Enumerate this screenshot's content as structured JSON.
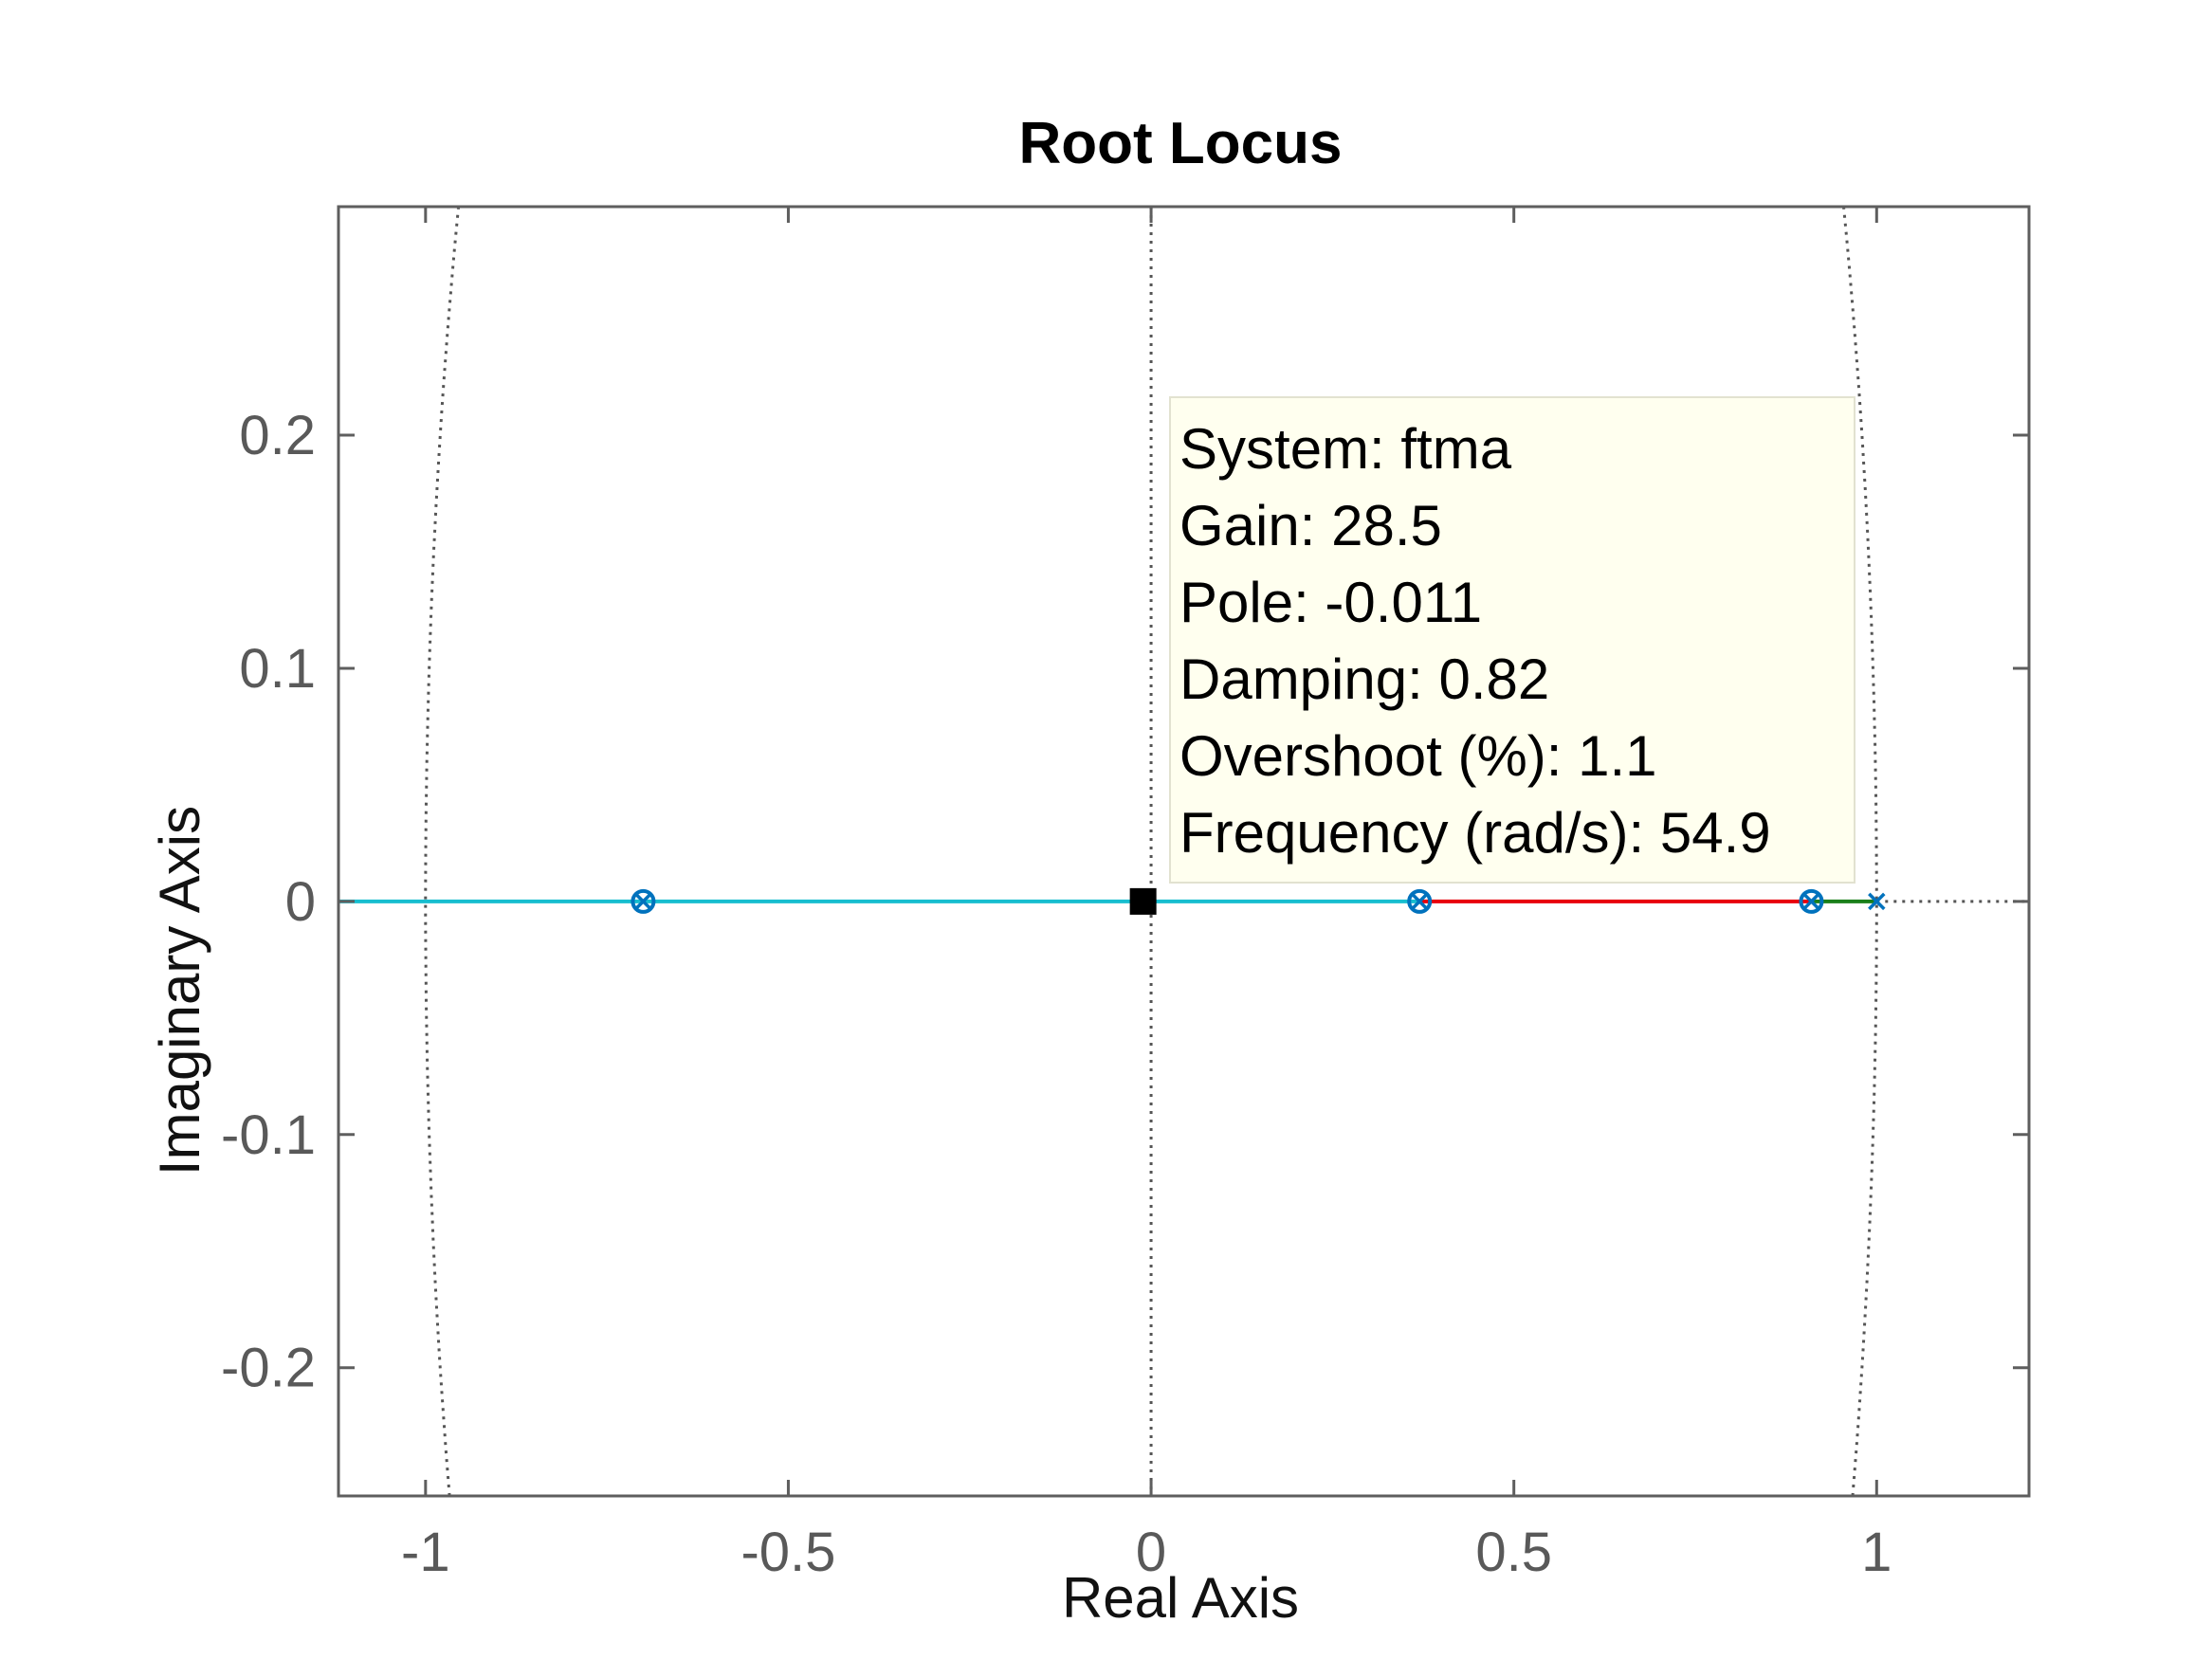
{
  "chart_data": {
    "type": "scatter",
    "title": "Root Locus",
    "xlabel": "Real Axis",
    "ylabel": "Imaginary Axis",
    "xlim": [
      -1.12,
      1.21
    ],
    "ylim": [
      -0.255,
      0.298
    ],
    "xticks": [
      -1,
      -0.5,
      0,
      0.5,
      1
    ],
    "xtick_labels": [
      "-1",
      "-0.5",
      "0",
      "0.5",
      "1"
    ],
    "yticks": [
      -0.2,
      -0.1,
      0,
      0.1,
      0.2
    ],
    "ytick_labels": [
      "-0.2",
      "-0.1",
      "0",
      "0.1",
      "0.2"
    ],
    "grid": "off",
    "colors": {
      "branch_cyan": "#17becf",
      "branch_red": "#e8000b",
      "branch_green": "#1a7f1a",
      "marker_blue": "#0072bd",
      "tooltip_bg": "#ffffef"
    },
    "poles_x": [
      -0.7,
      0.37,
      0.91,
      1.0
    ],
    "zeros": [
      -0.7,
      0.37,
      0.91
    ],
    "branches": [
      {
        "color": "#17becf",
        "x": [
          -1.12,
          0.37
        ]
      },
      {
        "color": "#e8000b",
        "x": [
          0.37,
          0.91
        ]
      },
      {
        "color": "#1a7f1a",
        "x": [
          0.91,
          1.0
        ]
      }
    ],
    "datatip": {
      "x": -0.011,
      "y": 0,
      "lines": [
        "System: ftma",
        "Gain: 28.5",
        "Pole: -0.011",
        "Damping: 0.82",
        "Overshoot (%): 1.1",
        "Frequency (rad/s): 54.9"
      ]
    }
  }
}
